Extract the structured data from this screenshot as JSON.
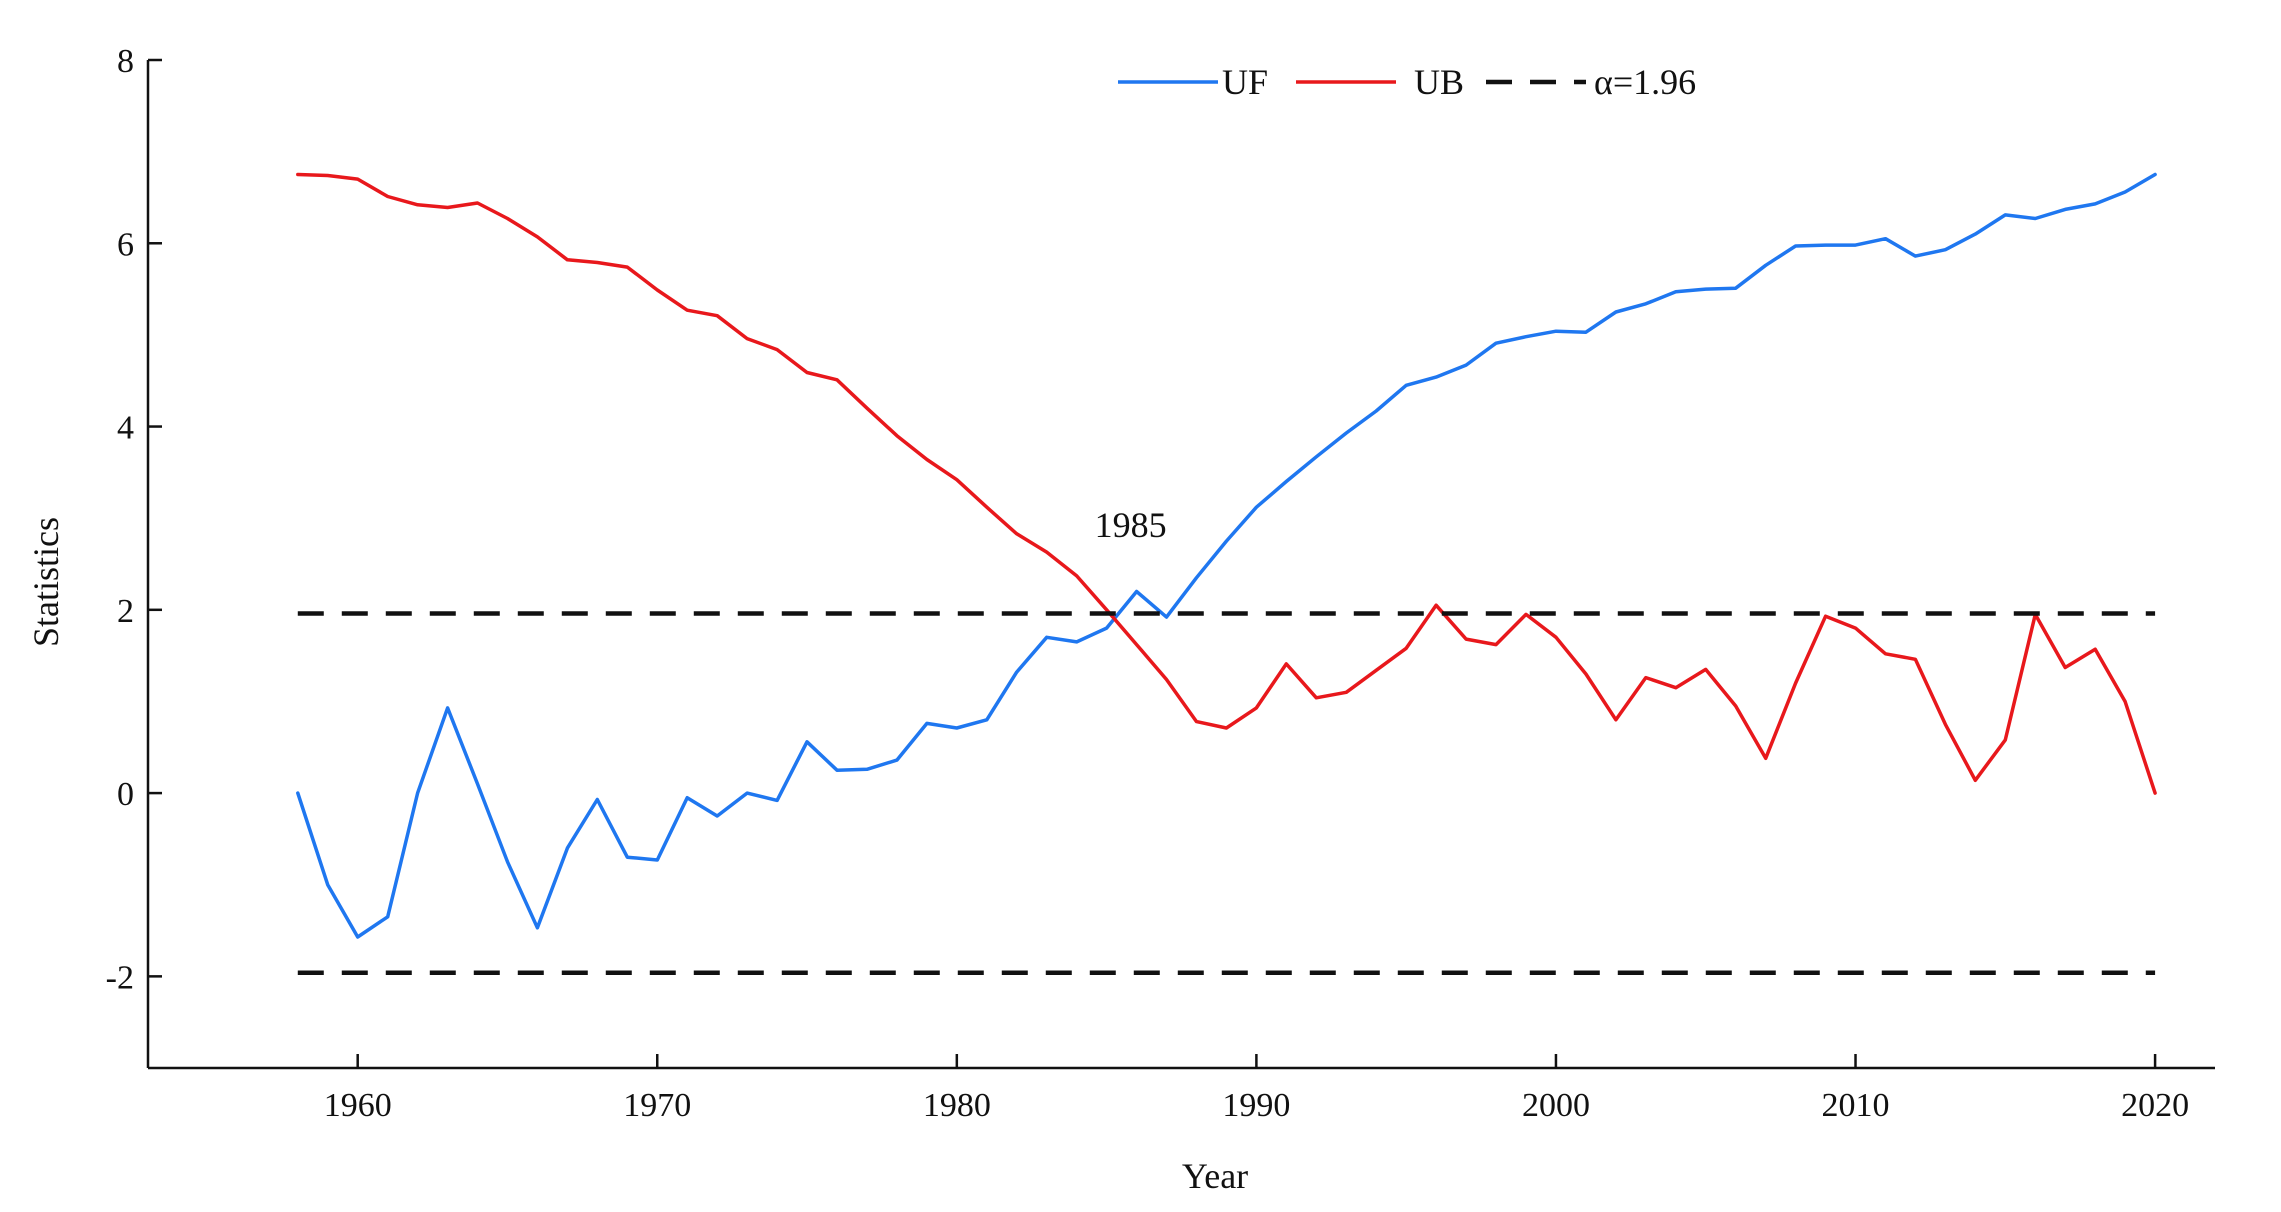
{
  "chart_data": {
    "type": "line",
    "title": "",
    "xlabel": "Year",
    "ylabel": "Statistics",
    "xlim": [
      1953,
      2022
    ],
    "ylim": [
      -3,
      8
    ],
    "x_ticks": [
      1960,
      1970,
      1980,
      1990,
      2000,
      2010,
      2020
    ],
    "y_ticks": [
      -2,
      0,
      2,
      4,
      6,
      8
    ],
    "x_tick_labels": [
      "1960",
      "1970",
      "1980",
      "1990",
      "2000",
      "2010",
      "2020"
    ],
    "y_tick_labels": [
      "-2",
      "0",
      "2",
      "4",
      "6",
      "8"
    ],
    "grid": false,
    "legend_position": "top-center",
    "x": [
      1958,
      1959,
      1960,
      1961,
      1962,
      1963,
      1964,
      1965,
      1966,
      1967,
      1968,
      1969,
      1970,
      1971,
      1972,
      1973,
      1974,
      1975,
      1976,
      1977,
      1978,
      1979,
      1980,
      1981,
      1982,
      1983,
      1984,
      1985,
      1986,
      1987,
      1988,
      1989,
      1990,
      1991,
      1992,
      1993,
      1994,
      1995,
      1996,
      1997,
      1998,
      1999,
      2000,
      2001,
      2002,
      2003,
      2004,
      2005,
      2006,
      2007,
      2008,
      2009,
      2010,
      2011,
      2012,
      2013,
      2014,
      2015,
      2016,
      2017,
      2018,
      2019,
      2020
    ],
    "series": [
      {
        "name": "UF",
        "color": "#1f77f0",
        "values": [
          0.0,
          -1.0,
          -1.57,
          -1.35,
          0.0,
          0.93,
          0.1,
          -0.75,
          -1.47,
          -0.6,
          -0.07,
          -0.7,
          -0.73,
          -0.05,
          -0.25,
          0.0,
          -0.08,
          0.56,
          0.25,
          0.26,
          0.36,
          0.76,
          0.71,
          0.8,
          1.32,
          1.7,
          1.65,
          1.8,
          2.2,
          1.92,
          2.35,
          2.75,
          3.12,
          3.4,
          3.67,
          3.93,
          4.17,
          4.45,
          4.54,
          4.67,
          4.91,
          4.98,
          5.04,
          5.03,
          5.25,
          5.34,
          5.47,
          5.5,
          5.51,
          5.76,
          5.97,
          5.98,
          5.98,
          6.05,
          5.86,
          5.93,
          6.1,
          6.31,
          6.27,
          6.37,
          6.43,
          6.56,
          6.75
        ]
      },
      {
        "name": "UB",
        "color": "#e8181c",
        "values": [
          6.75,
          6.74,
          6.7,
          6.51,
          6.42,
          6.39,
          6.44,
          6.27,
          6.07,
          5.82,
          5.79,
          5.74,
          5.49,
          5.27,
          5.21,
          4.96,
          4.84,
          4.59,
          4.51,
          4.2,
          3.9,
          3.64,
          3.42,
          3.12,
          2.83,
          2.63,
          2.37,
          2.0,
          1.62,
          1.24,
          0.78,
          0.71,
          0.93,
          1.41,
          1.04,
          1.1,
          1.34,
          1.58,
          2.05,
          1.68,
          1.62,
          1.95,
          1.7,
          1.3,
          0.8,
          1.26,
          1.15,
          1.35,
          0.95,
          0.38,
          1.2,
          1.93,
          1.8,
          1.52,
          1.46,
          0.75,
          0.14,
          0.58,
          1.95,
          1.37,
          1.57,
          1.0,
          0.0
        ]
      },
      {
        "name": "α=1.96",
        "color": "#111111",
        "dashed": true,
        "values_upper": 1.96,
        "values_lower": -1.96
      }
    ],
    "annotations": [
      {
        "text": "1985",
        "x": 1985,
        "y": 2.75
      }
    ]
  }
}
